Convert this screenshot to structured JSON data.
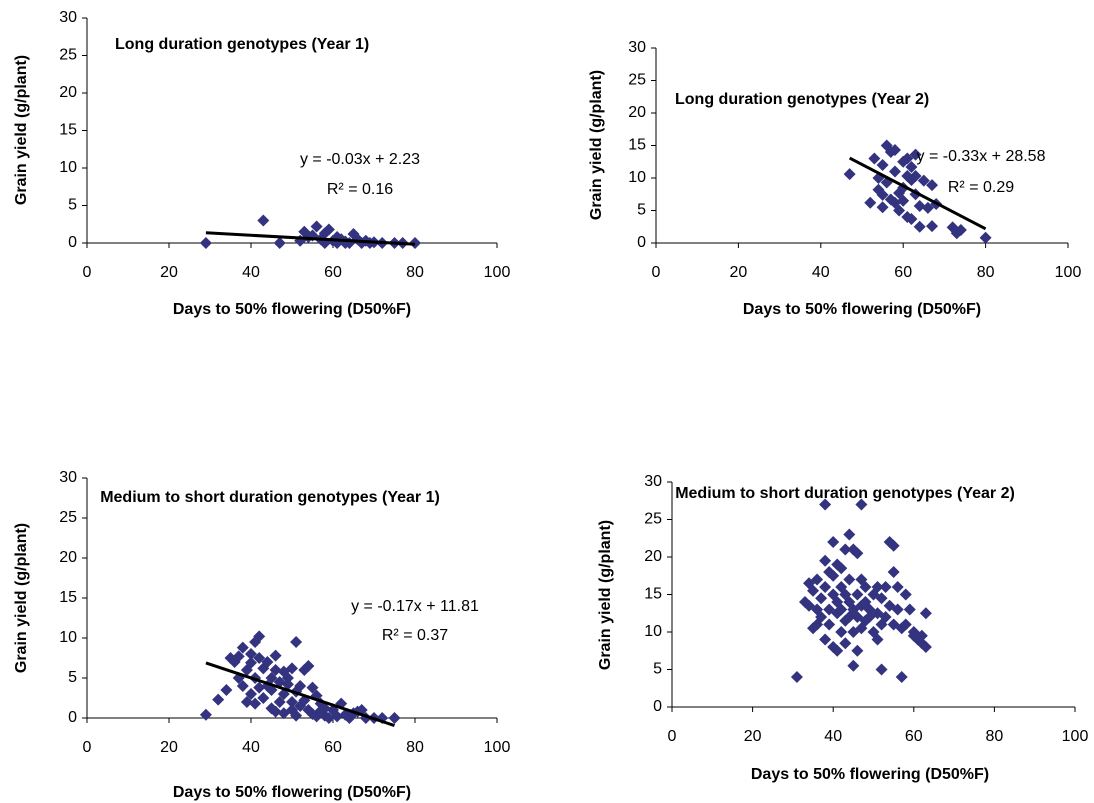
{
  "chart_data": [
    {
      "type": "scatter",
      "title": "Long duration genotypes (Year 1)",
      "xlabel": "Days to 50% flowering (D50%F)",
      "ylabel": "Grain yield (g/plant)",
      "color": "#33337f",
      "xlim": [
        0,
        100
      ],
      "ylim": [
        0,
        30
      ],
      "xticks": [
        0,
        20,
        40,
        60,
        80,
        100
      ],
      "yticks": [
        0,
        5,
        10,
        15,
        20,
        25,
        30
      ],
      "x": [
        29,
        43,
        47,
        52,
        53,
        54,
        55,
        56,
        57,
        58,
        58,
        59,
        60,
        61,
        61,
        62,
        63,
        63,
        64,
        65,
        66,
        67,
        68,
        69,
        70,
        72,
        75,
        77,
        80
      ],
      "values": [
        0,
        3,
        0,
        0.3,
        1.5,
        0.8,
        1.0,
        2.2,
        0.5,
        0,
        1.3,
        1.8,
        0.3,
        0,
        0.8,
        0.5,
        0.2,
        0,
        0,
        1.2,
        0.5,
        0,
        0.3,
        0,
        0.1,
        0,
        0,
        0,
        0
      ],
      "trend": {
        "slope": -0.03,
        "intercept": 2.23,
        "equation": "y = -0.03x + 2.23",
        "r2": "R² = 0.16"
      }
    },
    {
      "type": "scatter",
      "title": "Long duration genotypes (Year 2)",
      "xlabel": "Days to 50% flowering (D50%F)",
      "ylabel": "Grain yield (g/plant)",
      "color": "#33337f",
      "xlim": [
        0,
        100
      ],
      "ylim": [
        0,
        30
      ],
      "xticks": [
        0,
        20,
        40,
        60,
        80,
        100
      ],
      "yticks": [
        0,
        5,
        10,
        15,
        20,
        25,
        30
      ],
      "x": [
        47,
        52,
        53,
        54,
        54,
        55,
        55,
        55,
        56,
        56,
        57,
        57,
        58,
        58,
        58,
        59,
        59,
        60,
        60,
        60,
        61,
        61,
        61,
        62,
        62,
        62,
        63,
        63,
        63,
        64,
        64,
        65,
        66,
        67,
        67,
        68,
        72,
        73,
        74,
        80
      ],
      "values": [
        10.6,
        6.2,
        13.0,
        8.2,
        10.0,
        5.5,
        7.4,
        12.0,
        15.0,
        9.3,
        14.0,
        6.7,
        14.3,
        11.0,
        6.2,
        5.0,
        7.7,
        6.5,
        12.5,
        8.5,
        10.3,
        4.0,
        13.0,
        3.7,
        9.7,
        11.7,
        13.6,
        10.3,
        7.5,
        5.7,
        2.5,
        9.6,
        5.4,
        2.6,
        8.9,
        6.0,
        2.4,
        1.5,
        2.0,
        0.8
      ],
      "trend": {
        "slope": -0.33,
        "intercept": 28.58,
        "equation": "y = -0.33x + 28.58",
        "r2": "R² = 0.29"
      }
    },
    {
      "type": "scatter",
      "title": "Medium to short duration genotypes (Year 1)",
      "xlabel": "Days to 50% flowering (D50%F)",
      "ylabel": "Grain yield (g/plant)",
      "color": "#33337f",
      "xlim": [
        0,
        100
      ],
      "ylim": [
        0,
        30
      ],
      "xticks": [
        0,
        20,
        40,
        60,
        80,
        100
      ],
      "yticks": [
        0,
        5,
        10,
        15,
        20,
        25,
        30
      ],
      "x": [
        29,
        32,
        34,
        35,
        36,
        37,
        37,
        38,
        38,
        39,
        39,
        40,
        40,
        40,
        41,
        41,
        41,
        42,
        42,
        42,
        43,
        43,
        44,
        44,
        45,
        45,
        45,
        46,
        46,
        46,
        47,
        47,
        48,
        48,
        48,
        49,
        49,
        50,
        50,
        50,
        51,
        51,
        51,
        52,
        52,
        53,
        53,
        54,
        54,
        55,
        55,
        56,
        56,
        57,
        57,
        58,
        58,
        59,
        60,
        61,
        62,
        63,
        64,
        65,
        66,
        67,
        68,
        70,
        72,
        75
      ],
      "values": [
        0.4,
        2.3,
        3.5,
        7.5,
        7.0,
        5.0,
        7.7,
        8.8,
        4.0,
        6.0,
        2.0,
        8.0,
        3.0,
        6.9,
        9.5,
        5.0,
        1.8,
        10.2,
        7.5,
        3.8,
        6.2,
        2.5,
        4.0,
        7.0,
        5.0,
        1.2,
        3.5,
        0.8,
        6.0,
        7.8,
        4.5,
        2.0,
        5.8,
        3.0,
        0.6,
        5.0,
        4.2,
        2.0,
        6.2,
        1.0,
        9.5,
        3.3,
        0.3,
        1.5,
        4.0,
        6.0,
        2.2,
        6.5,
        1.0,
        0.5,
        3.8,
        2.8,
        0.2,
        1.8,
        0.9,
        0.3,
        1.2,
        0,
        1.0,
        0.2,
        1.8,
        0.4,
        0,
        0.6,
        0.8,
        1.0,
        0,
        0,
        0,
        0
      ],
      "trend": {
        "slope": -0.17,
        "intercept": 11.81,
        "equation": "y = -0.17x + 11.81",
        "r2": "R² = 0.37"
      }
    },
    {
      "type": "scatter",
      "title": "Medium to short duration genotypes (Year 2)",
      "xlabel": "Days to 50% flowering (D50%F)",
      "ylabel": "Grain yield (g/plant)",
      "color": "#33337f",
      "xlim": [
        0,
        100
      ],
      "ylim": [
        0,
        30
      ],
      "xticks": [
        0,
        20,
        40,
        60,
        80,
        100
      ],
      "yticks": [
        0,
        5,
        10,
        15,
        20,
        25,
        30
      ],
      "x": [
        31,
        33,
        34,
        34,
        35,
        35,
        36,
        36,
        36,
        37,
        37,
        38,
        38,
        38,
        38,
        39,
        39,
        39,
        40,
        40,
        40,
        40,
        41,
        41,
        41,
        41,
        42,
        42,
        42,
        42,
        43,
        43,
        43,
        43,
        44,
        44,
        44,
        44,
        45,
        45,
        45,
        45,
        46,
        46,
        46,
        46,
        47,
        47,
        47,
        47,
        48,
        48,
        48,
        49,
        49,
        50,
        50,
        51,
        51,
        51,
        52,
        52,
        52,
        53,
        53,
        54,
        54,
        55,
        55,
        55,
        56,
        56,
        57,
        57,
        58,
        58,
        59,
        60,
        60,
        61,
        62,
        62,
        63,
        63
      ],
      "values": [
        4,
        14,
        13.5,
        16.5,
        10.5,
        15.5,
        11,
        17,
        13,
        14.5,
        12,
        27,
        19.5,
        16,
        9,
        18,
        13,
        11,
        22,
        15,
        8,
        17.5,
        12.5,
        19,
        7.5,
        14,
        16,
        10,
        13,
        18.5,
        21,
        15,
        11.5,
        8.5,
        23,
        17,
        12,
        14,
        21,
        13,
        10,
        5.5,
        20.5,
        15,
        12,
        7.5,
        27,
        17,
        13.5,
        10.5,
        14,
        11.5,
        16,
        13,
        12,
        15,
        10,
        16,
        12.5,
        9,
        14.5,
        5,
        11,
        12,
        16,
        22,
        13.5,
        21.5,
        18,
        11,
        13,
        16,
        10.5,
        4,
        15,
        11,
        13,
        9.5,
        10,
        9,
        9.5,
        8.5,
        12.5,
        8
      ]
    }
  ]
}
